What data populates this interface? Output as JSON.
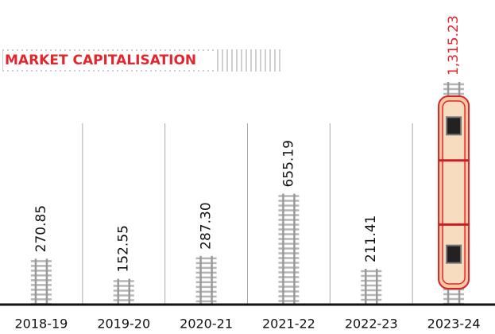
{
  "chart_data": {
    "type": "bar",
    "title": "MARKET CAPITALISATION",
    "categories": [
      "2018-19",
      "2019-20",
      "2020-21",
      "2021-22",
      "2022-23",
      "2023-24"
    ],
    "values": [
      270.85,
      152.55,
      287.3,
      655.19,
      211.41,
      1315.23
    ],
    "value_labels": [
      "270.85",
      "152.55",
      "287.30",
      "655.19",
      "211.41",
      "1,315.23"
    ],
    "label_colors": [
      "#111111",
      "#111111",
      "#111111",
      "#111111",
      "#111111",
      "#e3262e"
    ],
    "color": "#9a9a9a",
    "ylim": [
      0,
      1400
    ]
  }
}
